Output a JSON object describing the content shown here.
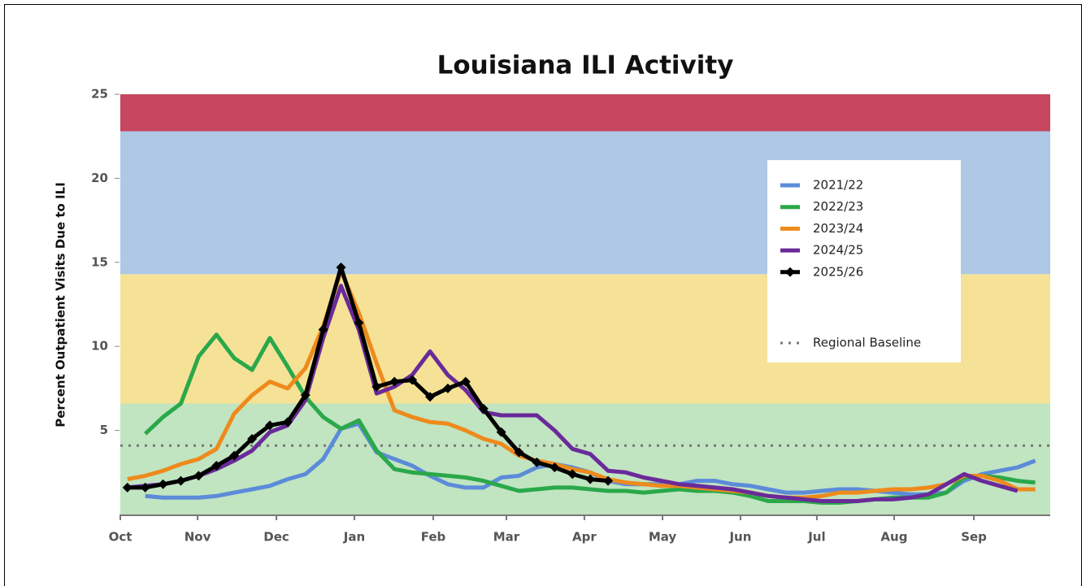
{
  "chart_data": {
    "type": "line",
    "title": "Louisiana ILI Activity",
    "y_label": "Percent Outpatient Visits Due to ILI",
    "xlim": [
      0,
      52.24
    ],
    "ylim": [
      0,
      25
    ],
    "yticks": [
      5,
      10,
      15,
      20,
      25
    ],
    "xticks": [
      {
        "value": 0,
        "label": "Oct"
      },
      {
        "value": 4.34,
        "label": "Nov"
      },
      {
        "value": 8.77,
        "label": "Dec"
      },
      {
        "value": 13.15,
        "label": "Jan"
      },
      {
        "value": 17.58,
        "label": "Feb"
      },
      {
        "value": 21.69,
        "label": "Mar"
      },
      {
        "value": 26.07,
        "label": "Apr"
      },
      {
        "value": 30.46,
        "label": "May"
      },
      {
        "value": 34.84,
        "label": "Jun"
      },
      {
        "value": 39.13,
        "label": "Jul"
      },
      {
        "value": 43.47,
        "label": "Aug"
      },
      {
        "value": 47.95,
        "label": "Sep"
      }
    ],
    "bands": [
      {
        "from": 0,
        "to": 6.6,
        "color": "#c1e4c1"
      },
      {
        "from": 6.6,
        "to": 14.3,
        "color": "#f5e296"
      },
      {
        "from": 14.3,
        "to": 22.8,
        "color": "#aec8e6"
      },
      {
        "from": 22.8,
        "to": 25,
        "color": "#c8465f"
      }
    ],
    "baseline": {
      "name": "Regional Baseline",
      "value": 4.1,
      "color": "#777777"
    },
    "x": [
      0.4,
      1.4,
      2.4,
      3.4,
      4.4,
      5.4,
      6.4,
      7.4,
      8.4,
      9.4,
      10.4,
      11.4,
      12.4,
      13.4,
      14.4,
      15.4,
      16.4,
      17.4,
      18.4,
      19.4,
      20.4,
      21.4,
      22.4,
      23.4,
      24.4,
      25.4,
      26.4,
      27.4,
      28.4,
      29.4,
      30.4,
      31.4,
      32.4,
      33.4,
      34.4,
      35.4,
      36.4,
      37.4,
      38.4,
      39.4,
      40.4,
      41.4,
      42.4,
      43.4,
      44.4,
      45.4,
      46.4,
      47.4,
      48.4,
      49.4,
      50.4,
      51.4
    ],
    "series": [
      {
        "name": "2021/22",
        "color": "#5b8bd9",
        "values": [
          null,
          1.1,
          1.0,
          1.0,
          1.0,
          1.1,
          1.3,
          1.5,
          1.7,
          2.1,
          2.4,
          3.3,
          5.1,
          5.4,
          3.7,
          3.3,
          2.9,
          2.3,
          1.8,
          1.6,
          1.6,
          2.2,
          2.3,
          2.8,
          3.0,
          2.8,
          2.5,
          2.0,
          1.8,
          1.8,
          1.8,
          1.8,
          2.0,
          2.0,
          1.8,
          1.7,
          1.5,
          1.3,
          1.3,
          1.4,
          1.5,
          1.5,
          1.4,
          1.3,
          1.2,
          1.2,
          1.3,
          2.0,
          2.4,
          2.6,
          2.8,
          3.2
        ]
      },
      {
        "name": "2022/23",
        "color": "#2aa84a",
        "values": [
          null,
          4.8,
          5.8,
          6.6,
          9.4,
          10.7,
          9.3,
          8.6,
          10.5,
          8.8,
          7.0,
          5.8,
          5.1,
          5.6,
          3.8,
          2.7,
          2.5,
          2.4,
          2.3,
          2.2,
          2.0,
          1.7,
          1.4,
          1.5,
          1.6,
          1.6,
          1.5,
          1.4,
          1.4,
          1.3,
          1.4,
          1.5,
          1.4,
          1.4,
          1.3,
          1.1,
          0.8,
          0.8,
          0.8,
          0.7,
          0.7,
          0.8,
          0.9,
          1.0,
          1.0,
          1.0,
          1.3,
          2.2,
          2.3,
          2.2,
          2.0,
          1.9
        ]
      },
      {
        "name": "2023/24",
        "color": "#ee8a1c",
        "values": [
          2.1,
          2.3,
          2.6,
          3.0,
          3.3,
          3.9,
          6.0,
          7.1,
          7.9,
          7.5,
          8.7,
          11.2,
          14.5,
          12.0,
          9.0,
          6.2,
          5.8,
          5.5,
          5.4,
          5.0,
          4.5,
          4.2,
          3.5,
          3.2,
          3.0,
          2.7,
          2.5,
          2.1,
          1.9,
          1.8,
          1.7,
          1.7,
          1.6,
          1.5,
          1.4,
          1.3,
          1.1,
          1.0,
          1.0,
          1.1,
          1.3,
          1.3,
          1.4,
          1.5,
          1.5,
          1.6,
          1.8,
          2.3,
          2.3,
          2.0,
          1.5,
          1.5
        ]
      },
      {
        "name": "2024/25",
        "color": "#6a2a9a",
        "values": [
          1.6,
          1.7,
          1.8,
          2.0,
          2.3,
          2.7,
          3.2,
          3.8,
          4.9,
          5.3,
          6.8,
          10.5,
          13.6,
          11.0,
          7.2,
          7.6,
          8.3,
          9.7,
          8.3,
          7.4,
          6.1,
          5.9,
          5.9,
          5.9,
          5.0,
          3.9,
          3.6,
          2.6,
          2.5,
          2.2,
          2.0,
          1.8,
          1.7,
          1.6,
          1.5,
          1.3,
          1.1,
          1.0,
          0.9,
          0.8,
          0.8,
          0.8,
          0.9,
          0.9,
          1.0,
          1.2,
          1.8,
          2.4,
          2.0,
          1.7,
          1.4,
          null
        ]
      },
      {
        "name": "2025/26",
        "color": "#000000",
        "marker": "diamond",
        "values": [
          1.6,
          1.6,
          1.8,
          2.0,
          2.3,
          2.9,
          3.5,
          4.5,
          5.3,
          5.5,
          7.1,
          11.0,
          14.7,
          11.4,
          7.6,
          7.9,
          8.0,
          7.0,
          7.5,
          7.9,
          6.3,
          4.9,
          3.7,
          3.1,
          2.8,
          2.4,
          2.1,
          2.0,
          null,
          null,
          null,
          null,
          null,
          null,
          null,
          null,
          null,
          null,
          null,
          null,
          null,
          null,
          null,
          null,
          null,
          null,
          null,
          null,
          null,
          null,
          null,
          null
        ]
      }
    ]
  }
}
